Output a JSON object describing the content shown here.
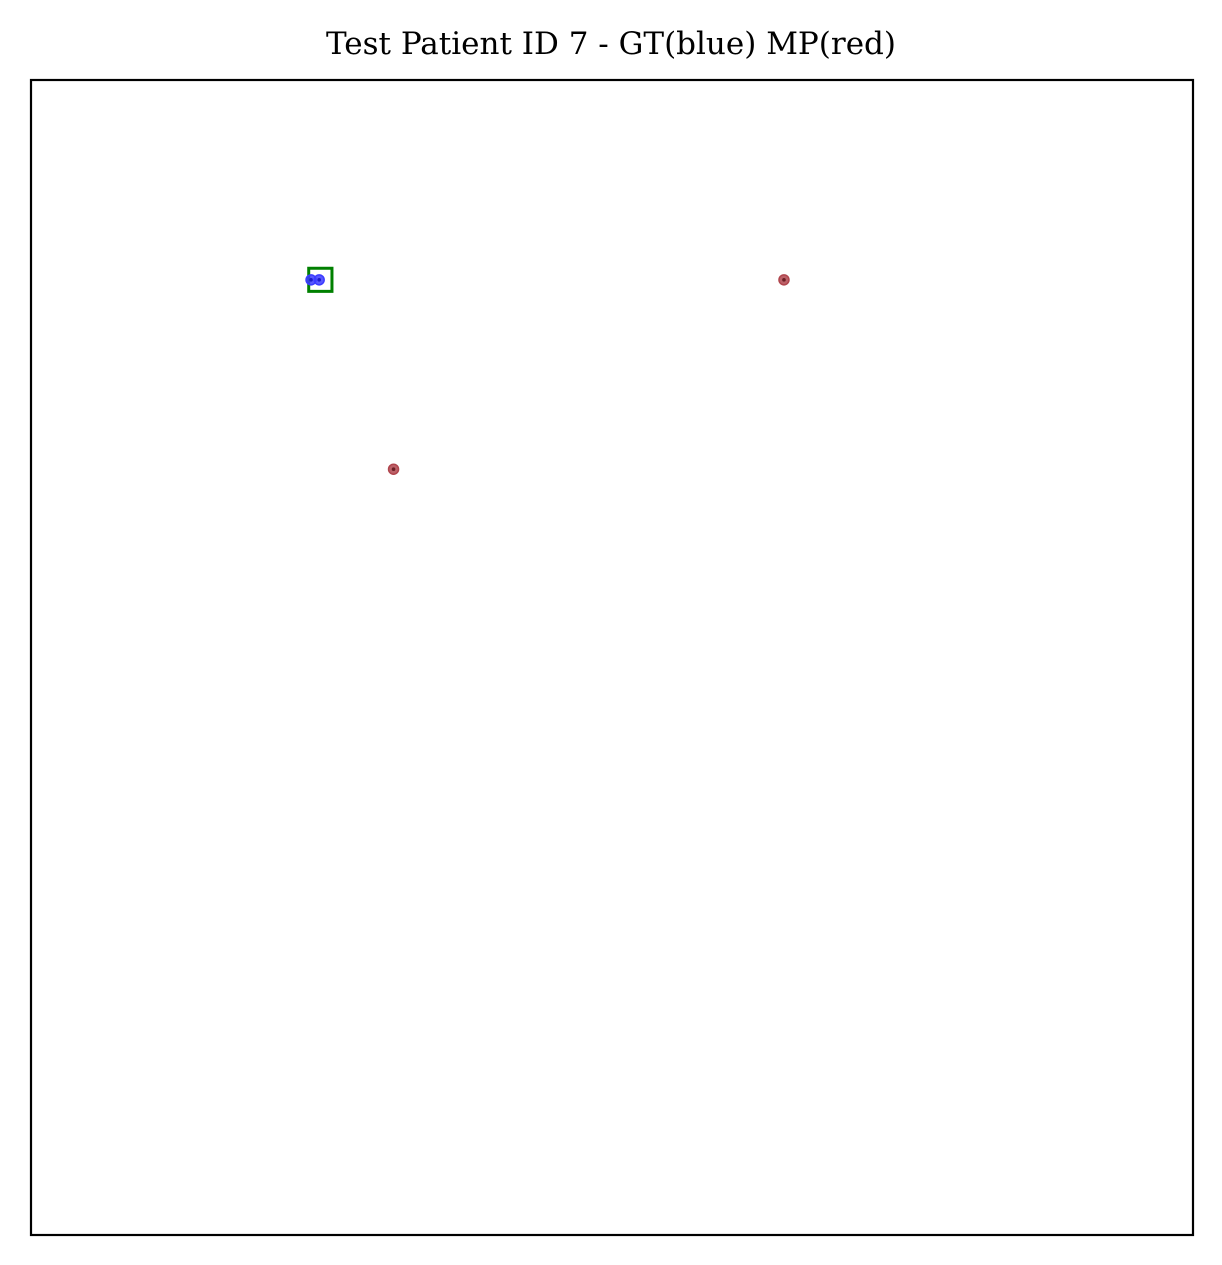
{
  "chart_data": {
    "type": "scatter",
    "title": "Test Patient ID 7 - GT(blue) MP(red)",
    "xlabel": "",
    "ylabel": "",
    "xlim": [
      0,
      1
    ],
    "ylim": [
      0,
      1
    ],
    "grid": false,
    "axes_ticks": false,
    "series": [
      {
        "color": "#3b3bff",
        "points": [
          {
            "x": 0.241,
            "y": 0.827
          },
          {
            "x": 0.248,
            "y": 0.827
          }
        ]
      },
      {
        "color": "#b0454d",
        "points": [
          {
            "x": 0.648,
            "y": 0.827
          },
          {
            "x": 0.312,
            "y": 0.663
          }
        ]
      }
    ],
    "boxes": [
      {
        "color": "#008000",
        "x0": 0.239,
        "x1": 0.259,
        "y0": 0.817,
        "y1": 0.837
      }
    ]
  }
}
